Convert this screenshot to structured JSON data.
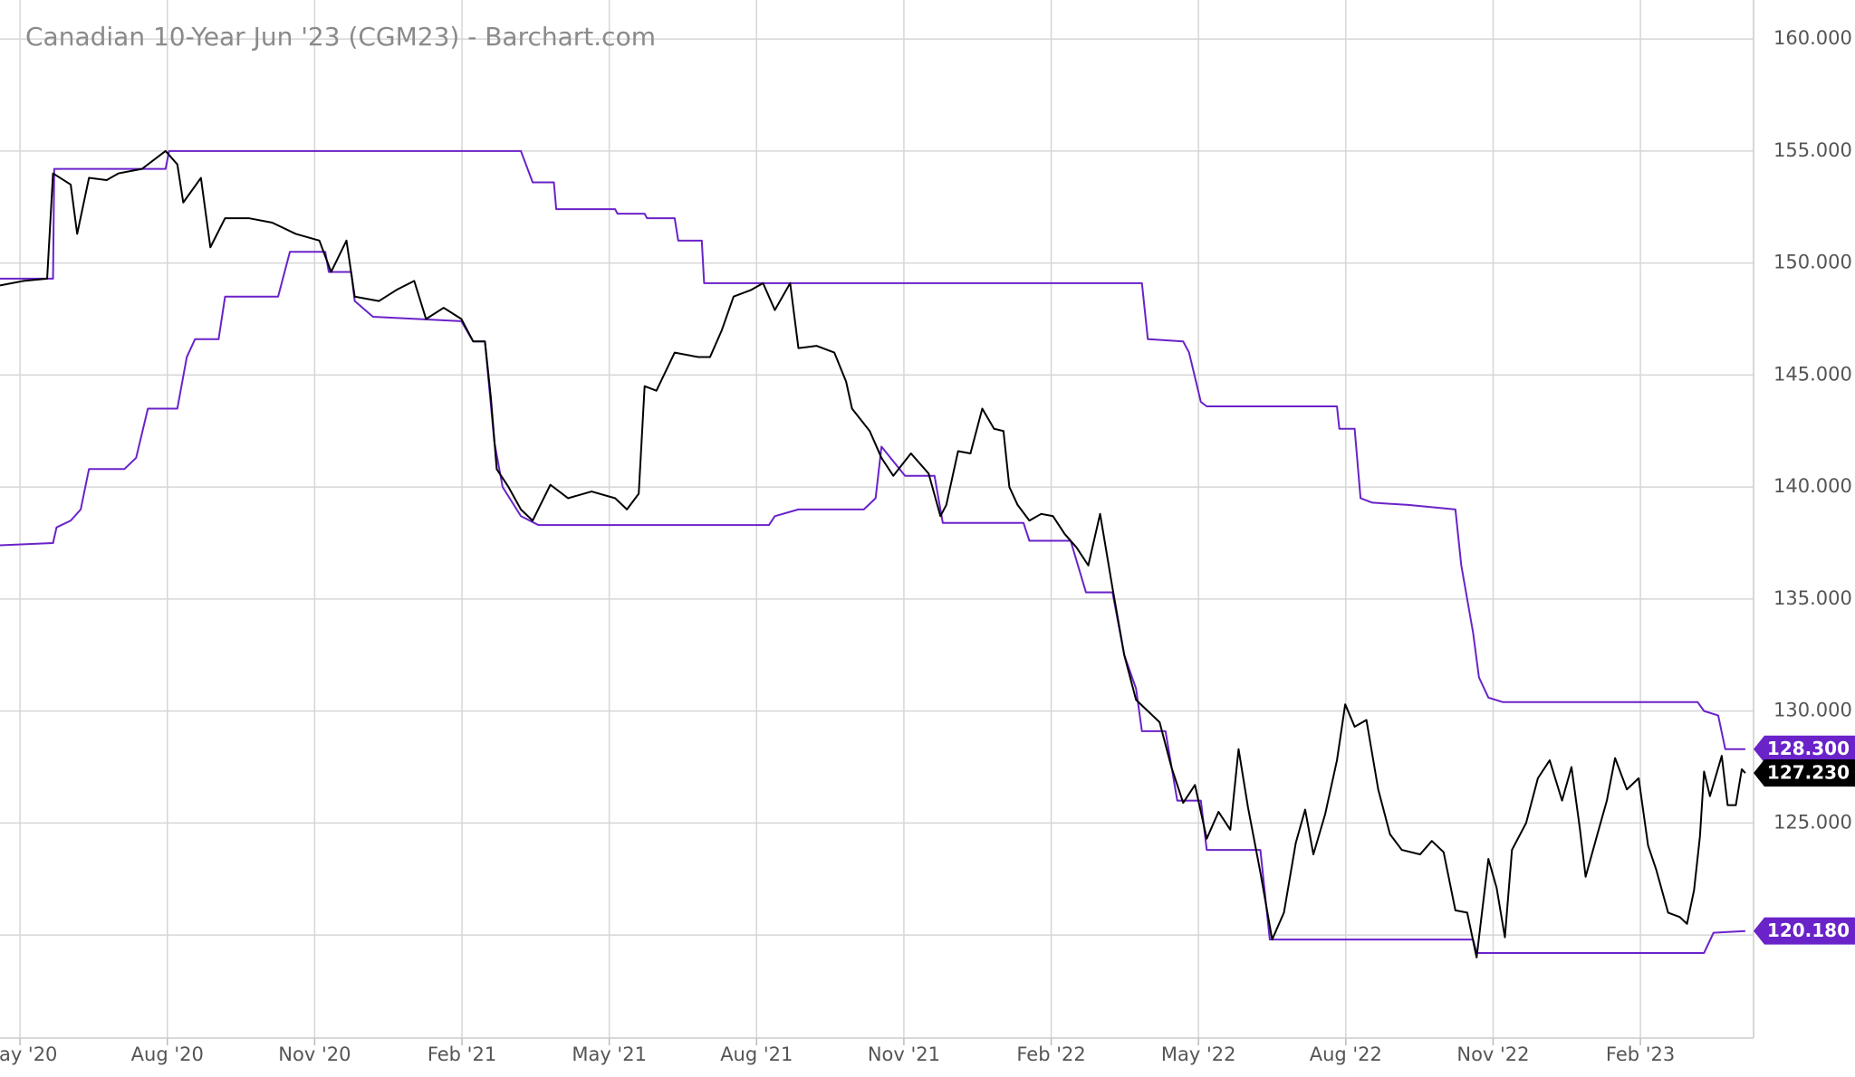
{
  "chart_data": {
    "type": "line",
    "title": "Canadian 10-Year Jun '23 (CGM23) - Barchart.com",
    "xlim": [
      2020.299,
      2023.275
    ],
    "ylim": [
      115.4,
      161.74
    ],
    "grid": true,
    "xticks": [
      {
        "value": 2020.333,
        "label": "May '20"
      },
      {
        "value": 2020.583,
        "label": "Aug '20"
      },
      {
        "value": 2020.833,
        "label": "Nov '20"
      },
      {
        "value": 2021.083,
        "label": "Feb '21"
      },
      {
        "value": 2021.333,
        "label": "May '21"
      },
      {
        "value": 2021.583,
        "label": "Aug '21"
      },
      {
        "value": 2021.833,
        "label": "Nov '21"
      },
      {
        "value": 2022.083,
        "label": "Feb '22"
      },
      {
        "value": 2022.333,
        "label": "May '22"
      },
      {
        "value": 2022.583,
        "label": "Aug '22"
      },
      {
        "value": 2022.833,
        "label": "Nov '22"
      },
      {
        "value": 2023.083,
        "label": "Feb '23"
      }
    ],
    "yticks": [
      {
        "value": 120,
        "label": "120.000"
      },
      {
        "value": 125,
        "label": "125.000"
      },
      {
        "value": 130,
        "label": "130.000"
      },
      {
        "value": 135,
        "label": "135.000"
      },
      {
        "value": 140,
        "label": "140.000"
      },
      {
        "value": 145,
        "label": "145.000"
      },
      {
        "value": 150,
        "label": "150.000"
      },
      {
        "value": 155,
        "label": "155.000"
      },
      {
        "value": 160,
        "label": "160.000"
      }
    ],
    "series": [
      {
        "color": "#6a22c9",
        "x": [
          2020.299,
          2020.389,
          2020.391,
          2020.58,
          2020.586,
          2021.183,
          2021.203,
          2021.239,
          2021.243,
          2021.343,
          2021.347,
          2021.393,
          2021.397,
          2021.444,
          2021.45,
          2021.49,
          2021.494,
          2022.237,
          2022.247,
          2022.307,
          2022.317,
          2022.337,
          2022.347,
          2022.568,
          2022.572,
          2022.598,
          2022.608,
          2022.628,
          2022.689,
          2022.769,
          2022.779,
          2022.799,
          2022.809,
          2022.825,
          2022.849,
          2023.18,
          2023.191,
          2023.215,
          2023.227,
          2023.261
        ],
        "values": [
          149.3,
          149.3,
          154.2,
          154.2,
          155.0,
          155.0,
          153.6,
          153.6,
          152.4,
          152.4,
          152.2,
          152.2,
          152.0,
          152.0,
          151.0,
          151.0,
          149.1,
          149.1,
          146.6,
          146.5,
          146.0,
          143.8,
          143.6,
          143.6,
          142.6,
          142.6,
          139.5,
          139.3,
          139.2,
          139.0,
          136.5,
          133.5,
          131.5,
          130.6,
          130.4,
          130.4,
          130.0,
          129.8,
          128.3,
          128.3
        ],
        "last_label": {
          "value": 128.3,
          "label": "128.300"
        }
      },
      {
        "color": "#6a22c9",
        "x": [
          2020.299,
          2020.389,
          2020.395,
          2020.419,
          2020.436,
          2020.45,
          2020.51,
          2020.53,
          2020.55,
          2020.6,
          2020.616,
          2020.63,
          2020.67,
          2020.681,
          2020.771,
          2020.791,
          2020.851,
          2020.857,
          2020.895,
          2020.901,
          2020.932,
          2021.082,
          2021.102,
          2021.122,
          2021.138,
          2021.152,
          2021.183,
          2021.213,
          2021.604,
          2021.614,
          2021.654,
          2021.765,
          2021.785,
          2021.795,
          2021.835,
          2021.885,
          2021.899,
          2022.036,
          2022.046,
          2022.116,
          2022.142,
          2022.187,
          2022.207,
          2022.227,
          2022.237,
          2022.277,
          2022.297,
          2022.337,
          2022.347,
          2022.438,
          2022.454,
          2022.799,
          2022.805,
          2023.191,
          2023.207,
          2023.261
        ],
        "values": [
          137.4,
          137.5,
          138.2,
          138.5,
          139.0,
          140.8,
          140.8,
          141.3,
          143.5,
          143.5,
          145.8,
          146.6,
          146.6,
          148.5,
          148.5,
          150.5,
          150.5,
          149.6,
          149.6,
          148.3,
          147.6,
          147.4,
          146.5,
          146.5,
          142.0,
          140.0,
          138.7,
          138.3,
          138.3,
          138.7,
          139.0,
          139.0,
          139.5,
          141.8,
          140.5,
          140.5,
          138.4,
          138.4,
          137.6,
          137.6,
          135.3,
          135.3,
          132.5,
          131.0,
          129.1,
          129.1,
          126.0,
          126.0,
          123.8,
          123.8,
          119.8,
          119.8,
          119.2,
          119.2,
          120.1,
          120.18
        ],
        "last_label": {
          "value": 120.18,
          "label": "120.180"
        }
      },
      {
        "color": "#000000",
        "x": [
          2020.299,
          2020.339,
          2020.379,
          2020.389,
          2020.419,
          2020.43,
          2020.45,
          2020.48,
          2020.5,
          2020.54,
          2020.58,
          2020.6,
          2020.61,
          2020.64,
          2020.656,
          2020.681,
          2020.721,
          2020.761,
          2020.801,
          2020.841,
          2020.861,
          2020.887,
          2020.901,
          2020.942,
          2020.972,
          2021.002,
          2021.022,
          2021.052,
          2021.082,
          2021.102,
          2021.122,
          2021.132,
          2021.142,
          2021.162,
          2021.183,
          2021.203,
          2021.233,
          2021.263,
          2021.303,
          2021.343,
          2021.363,
          2021.383,
          2021.393,
          2021.413,
          2021.444,
          2021.484,
          2021.504,
          2021.524,
          2021.544,
          2021.574,
          2021.594,
          2021.614,
          2021.64,
          2021.654,
          2021.685,
          2021.715,
          2021.735,
          2021.745,
          2021.775,
          2021.795,
          2021.815,
          2021.845,
          2021.875,
          2021.895,
          2021.905,
          2021.925,
          2021.946,
          2021.966,
          2021.986,
          2022.002,
          2022.012,
          2022.026,
          2022.046,
          2022.066,
          2022.086,
          2022.106,
          2022.126,
          2022.146,
          2022.166,
          2022.187,
          2022.207,
          2022.227,
          2022.247,
          2022.267,
          2022.287,
          2022.307,
          2022.327,
          2022.347,
          2022.367,
          2022.387,
          2022.401,
          2022.417,
          2022.438,
          2022.458,
          2022.478,
          2022.498,
          2022.514,
          2022.528,
          2022.548,
          2022.568,
          2022.582,
          2022.598,
          2022.618,
          2022.638,
          2022.658,
          2022.678,
          2022.709,
          2022.729,
          2022.749,
          2022.769,
          2022.789,
          2022.805,
          2022.825,
          2022.839,
          2022.853,
          2022.865,
          2022.889,
          2022.909,
          2022.929,
          2022.95,
          2022.966,
          2022.98,
          2022.99,
          2023.01,
          2023.026,
          2023.04,
          2023.06,
          2023.08,
          2023.096,
          2023.11,
          2023.13,
          2023.15,
          2023.162,
          2023.174,
          2023.184,
          2023.191,
          2023.201,
          2023.211,
          2023.221,
          2023.231,
          2023.245,
          2023.255,
          2023.261
        ],
        "values": [
          149.0,
          149.2,
          149.3,
          154.0,
          153.5,
          151.3,
          153.8,
          153.7,
          154.0,
          154.2,
          155.0,
          154.4,
          152.7,
          153.8,
          150.7,
          152.0,
          152.0,
          151.8,
          151.3,
          151.0,
          149.6,
          151.0,
          148.5,
          148.3,
          148.8,
          149.2,
          147.5,
          148.0,
          147.5,
          146.5,
          146.5,
          144.0,
          140.8,
          140.0,
          139.0,
          138.5,
          140.1,
          139.5,
          139.8,
          139.5,
          139.0,
          139.7,
          144.5,
          144.3,
          146.0,
          145.8,
          145.8,
          147.0,
          148.5,
          148.8,
          149.1,
          147.9,
          149.1,
          146.2,
          146.3,
          146.0,
          144.7,
          143.5,
          142.5,
          141.3,
          140.5,
          141.5,
          140.6,
          138.7,
          139.2,
          141.6,
          141.5,
          143.5,
          142.6,
          142.5,
          140.0,
          139.2,
          138.5,
          138.8,
          138.7,
          137.9,
          137.3,
          136.5,
          138.8,
          135.5,
          132.5,
          130.5,
          130.0,
          129.5,
          127.5,
          125.9,
          126.7,
          124.3,
          125.5,
          124.7,
          128.3,
          125.7,
          122.8,
          119.8,
          121.0,
          124.1,
          125.6,
          123.6,
          125.4,
          127.8,
          130.3,
          129.3,
          129.6,
          126.5,
          124.5,
          123.8,
          123.6,
          124.2,
          123.7,
          121.1,
          121.0,
          119.0,
          123.4,
          122.1,
          119.9,
          123.8,
          125.0,
          127.0,
          127.8,
          126.0,
          127.5,
          124.8,
          122.6,
          124.5,
          126.0,
          127.9,
          126.5,
          127.0,
          124.0,
          122.9,
          121.0,
          120.8,
          120.5,
          122.0,
          124.4,
          127.3,
          126.2,
          127.1,
          128.0,
          125.8,
          125.8,
          127.4,
          127.23
        ],
        "last_label": {
          "value": 127.23,
          "label": "127.230"
        }
      }
    ]
  }
}
